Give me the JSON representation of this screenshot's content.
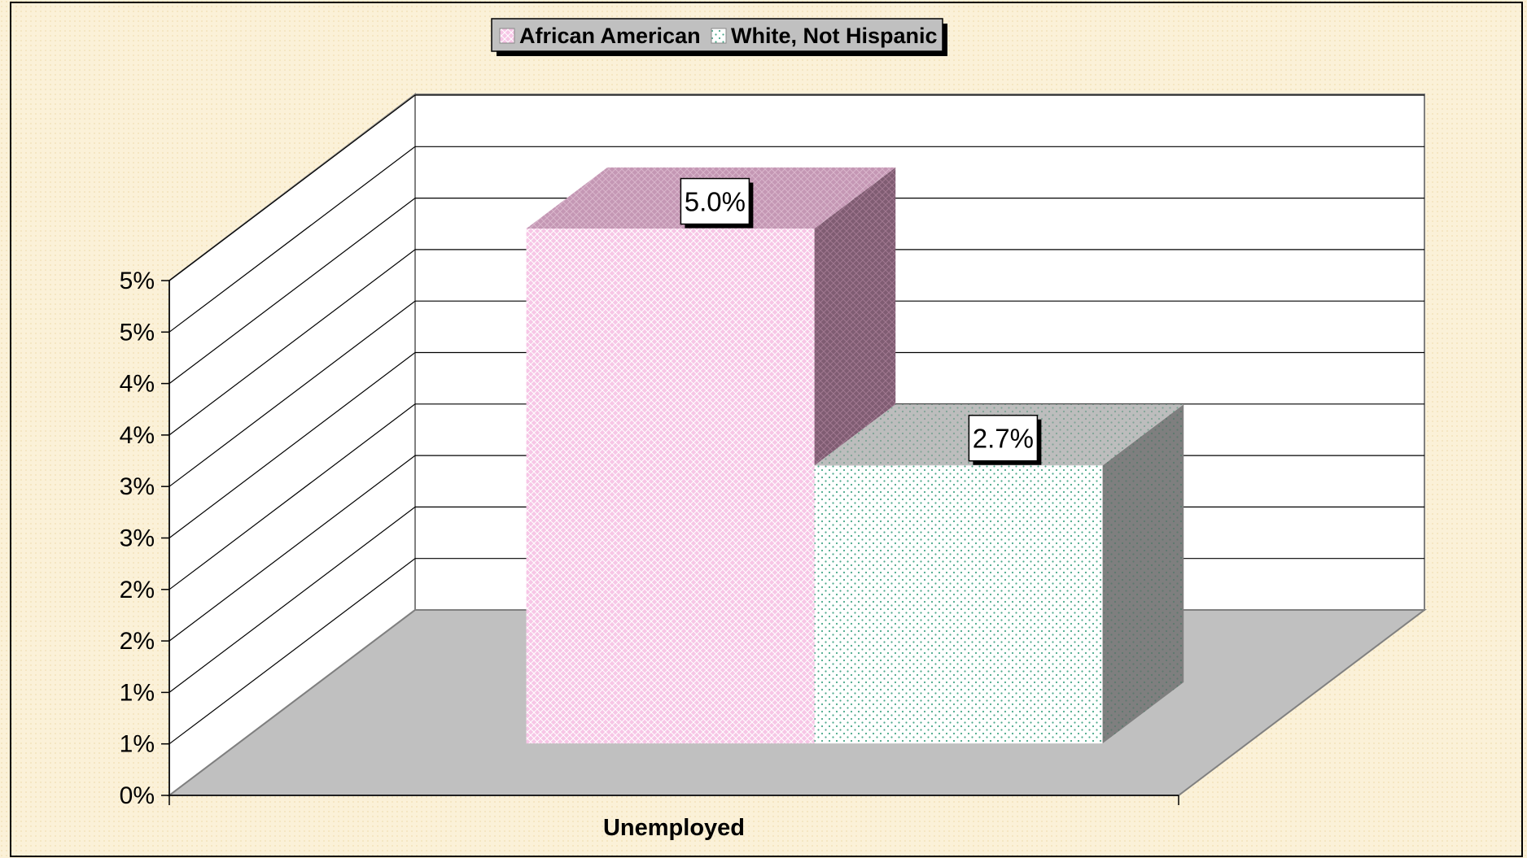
{
  "chart_data": {
    "type": "bar",
    "categories": [
      "Unemployed"
    ],
    "series": [
      {
        "name": "African American",
        "values": [
          5.0
        ],
        "data_label": "5.0%",
        "color": "#f7c6e6",
        "top_color": "#c497b4",
        "side_color": "#7f5c72"
      },
      {
        "name": "White, Not Hispanic",
        "values": [
          2.7
        ],
        "data_label": "2.7%",
        "color": "#ffffff",
        "top_color": "#bdbdbd",
        "side_color": "#7f7f7f"
      }
    ],
    "ylim": [
      0,
      5
    ],
    "yticks": [
      0,
      0.5,
      1,
      1.5,
      2,
      2.5,
      3,
      3.5,
      4,
      4.5,
      5
    ],
    "ytick_labels": [
      "0%",
      "1%",
      "1%",
      "2%",
      "2%",
      "3%",
      "3%",
      "4%",
      "4%",
      "5%",
      "5%"
    ],
    "grid": true,
    "legend": "top-center",
    "title": "",
    "xlabel": "",
    "ylabel": "",
    "colors": {
      "background": "#fbf1d8",
      "floor": "#c0c0c0",
      "wall": "#ffffff"
    }
  }
}
